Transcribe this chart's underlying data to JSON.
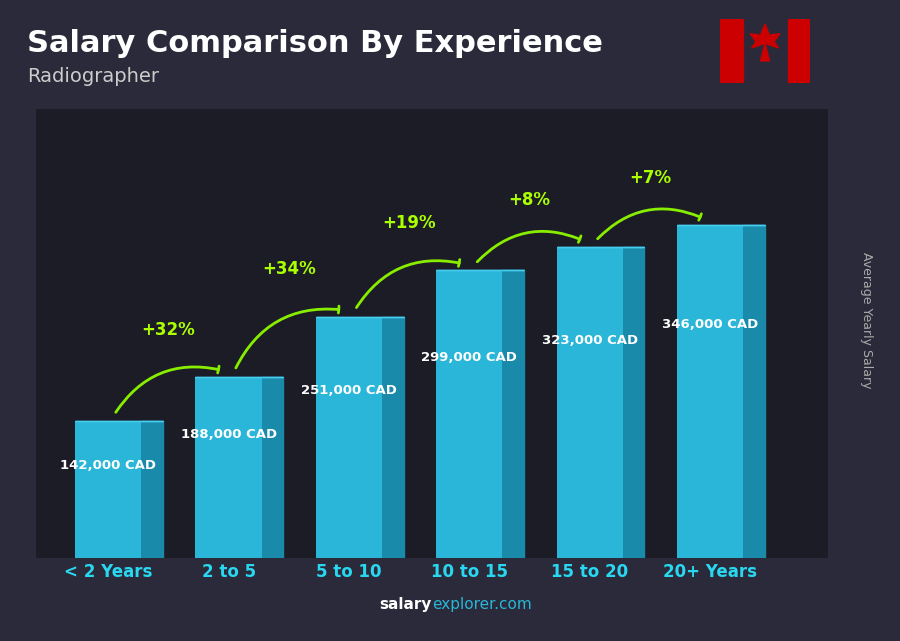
{
  "title": "Salary Comparison By Experience",
  "subtitle": "Radiographer",
  "ylabel": "Average Yearly Salary",
  "watermark": "salaryexplorer.com",
  "categories": [
    "< 2 Years",
    "2 to 5",
    "5 to 10",
    "10 to 15",
    "15 to 20",
    "20+ Years"
  ],
  "values": [
    142000,
    188000,
    251000,
    299000,
    323000,
    346000
  ],
  "labels": [
    "142,000 CAD",
    "188,000 CAD",
    "251,000 CAD",
    "299,000 CAD",
    "323,000 CAD",
    "346,000 CAD"
  ],
  "pct_labels": [
    "+32%",
    "+34%",
    "+19%",
    "+8%",
    "+7%"
  ],
  "bar_color": "#29b6d8",
  "bar_edge_color": "#1a8aaa",
  "bar_3d_color": "#1a8aaa",
  "title_color": "#ffffff",
  "subtitle_color": "#cccccc",
  "label_color": "#ffffff",
  "pct_color": "#aaff00",
  "tick_color": "#29d8f0",
  "bg_color": "#1a1a2e",
  "arrow_color": "#88ee00",
  "ylabel_color": "#aaaaaa",
  "watermark_salary_color": "#ffffff",
  "watermark_explorer_color": "#29b6d8"
}
